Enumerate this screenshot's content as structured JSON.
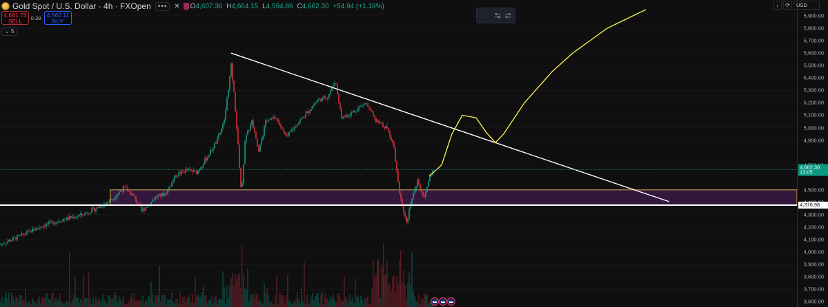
{
  "legend": {
    "symbol": "Gold Spot / U.S. Dollar · 4h · FXOpen",
    "more_label": "•••",
    "open_label": "O",
    "open": "4,607.36",
    "high_label": "H",
    "high": "4,664.15",
    "low_label": "L",
    "low": "4,594.86",
    "close_label": "C",
    "close": "4,662.30",
    "change": "+54.94 (+1.19%)"
  },
  "trade": {
    "sell_price": "4,661.73",
    "sell_label": "SELL",
    "spread": "0.38",
    "buy_price": "4,662.11",
    "buy_label": "BUY"
  },
  "indicators_toggle": "5",
  "currency": "USD",
  "axis_ticks": [
    "5,900.00",
    "5,800.00",
    "5,700.00",
    "5,600.00",
    "5,500.00",
    "5,400.00",
    "5,300.00",
    "5,200.00",
    "5,100.00",
    "5,000.00",
    "4,900.00",
    "4,700.00",
    "4,500.00",
    "4,400.00",
    "4,300.00",
    "4,200.00",
    "4,100.00",
    "4,000.00",
    "3,900.00",
    "3,800.00",
    "3,700.00",
    "3,600.00"
  ],
  "current_price": {
    "price": "4,662.30",
    "countdown": "13:05",
    "color": "#089981"
  },
  "support_level": {
    "price": "4,376.98"
  },
  "colors": {
    "up": "#22ab94",
    "down": "#f23645",
    "zone_border": "#d4b24a",
    "zone_fill": "#3a1a45",
    "projection": "#f5e84c",
    "trendline": "#ffffff"
  },
  "chart_data": {
    "type": "candlestick",
    "symbol": "XAUUSD",
    "timeframe": "4h",
    "ylim": [
      3600,
      5950
    ],
    "price_path": [
      [
        0,
        4060
      ],
      [
        30,
        4130
      ],
      [
        60,
        4210
      ],
      [
        90,
        4260
      ],
      [
        120,
        4300
      ],
      [
        150,
        4380
      ],
      [
        165,
        4440
      ],
      [
        180,
        4520
      ],
      [
        195,
        4440
      ],
      [
        205,
        4330
      ],
      [
        215,
        4380
      ],
      [
        225,
        4440
      ],
      [
        240,
        4470
      ],
      [
        255,
        4620
      ],
      [
        270,
        4660
      ],
      [
        285,
        4640
      ],
      [
        300,
        4760
      ],
      [
        315,
        4900
      ],
      [
        325,
        5050
      ],
      [
        335,
        5500
      ],
      [
        340,
        5220
      ],
      [
        345,
        4850
      ],
      [
        350,
        4450
      ],
      [
        355,
        4900
      ],
      [
        365,
        5050
      ],
      [
        375,
        4800
      ],
      [
        385,
        5050
      ],
      [
        400,
        5080
      ],
      [
        415,
        4920
      ],
      [
        430,
        5030
      ],
      [
        445,
        5120
      ],
      [
        460,
        5220
      ],
      [
        475,
        5250
      ],
      [
        486,
        5380
      ],
      [
        495,
        5080
      ],
      [
        510,
        5120
      ],
      [
        530,
        5200
      ],
      [
        545,
        5050
      ],
      [
        560,
        5000
      ],
      [
        570,
        4880
      ],
      [
        575,
        4650
      ],
      [
        580,
        4450
      ],
      [
        585,
        4300
      ],
      [
        590,
        4230
      ],
      [
        595,
        4400
      ],
      [
        605,
        4580
      ],
      [
        615,
        4430
      ],
      [
        622,
        4600
      ],
      [
        628,
        4662
      ]
    ],
    "resistance_trendline": [
      [
        335,
        5600
      ],
      [
        970,
        4405
      ]
    ],
    "demand_zone": {
      "from_x": 160,
      "to_x": 1155,
      "low": 4380,
      "high": 4500
    },
    "support_line": 4376.98,
    "projection_path": [
      [
        622,
        4610
      ],
      [
        640,
        4700
      ],
      [
        655,
        4950
      ],
      [
        670,
        5100
      ],
      [
        690,
        5080
      ],
      [
        705,
        4960
      ],
      [
        718,
        4880
      ],
      [
        730,
        4950
      ],
      [
        760,
        5200
      ],
      [
        800,
        5450
      ],
      [
        830,
        5600
      ],
      [
        880,
        5800
      ],
      [
        936,
        5950
      ]
    ]
  }
}
